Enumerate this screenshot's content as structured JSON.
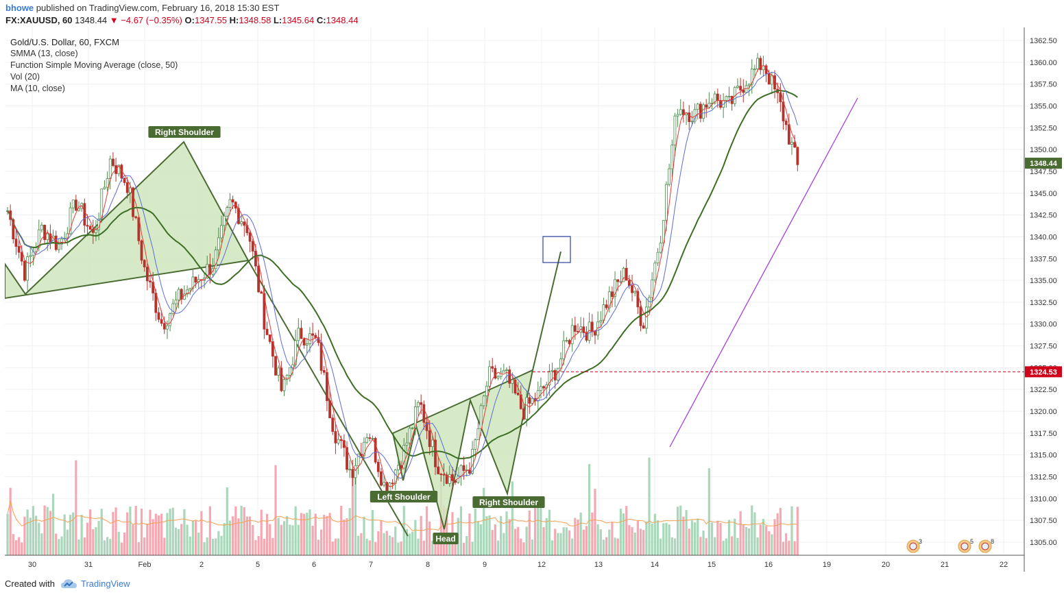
{
  "header": {
    "author": "bhowe",
    "published": "published on TradingView.com, February 16, 2018 15:30 EST",
    "symbol": "FX:XAUUSD, 60",
    "last": "1348.44",
    "change": "▼ −4.67 (−0.35%)",
    "o_label": "O:",
    "o": "1347.55",
    "h_label": "H:",
    "h": "1348.58",
    "l_label": "L:",
    "l": "1345.64",
    "c_label": "C:",
    "c": "1348.44"
  },
  "legend": {
    "title": "Gold/U.S. Dollar, 60, FXCM",
    "items": [
      "SMMA (13, close)",
      "Function Simple Moving Average (close, 50)",
      "Vol (20)",
      "MA (10, close)"
    ]
  },
  "footer": {
    "created": "Created with",
    "brand": "TradingView"
  },
  "colors": {
    "up": "#4a8a4a",
    "down": "#b5332d",
    "pattern": "#4a6b32",
    "pattern_fill": "#cfe6bd",
    "ma_red": "#e53935",
    "ma_blue": "#5c6bd6",
    "ma_green": "#3b6e22",
    "trendline": "#a63fe0",
    "vol_up": "#a8d8b9",
    "vol_down": "#f4a8b2",
    "vol_ma": "#f5a050",
    "level": "#d0021b"
  },
  "chart_data": {
    "type": "candlestick",
    "ylim": [
      1303.5,
      1364
    ],
    "y_ticks": [
      "1305.00",
      "1307.50",
      "1310.00",
      "1312.50",
      "1315.00",
      "1317.50",
      "1320.00",
      "1322.50",
      "1325.00",
      "1327.50",
      "1330.00",
      "1332.50",
      "1335.00",
      "1337.50",
      "1340.00",
      "1342.50",
      "1345.00",
      "1347.50",
      "1350.00",
      "1352.50",
      "1355.00",
      "1357.50",
      "1360.00",
      "1362.50"
    ],
    "x_ticks": [
      "30",
      "31",
      "Feb",
      "2",
      "5",
      "6",
      "7",
      "8",
      "9",
      "12",
      "13",
      "14",
      "15",
      "16",
      "19",
      "20",
      "21",
      "22"
    ],
    "last_price_label": "1348.44",
    "level_label": "1324.53",
    "level_value": 1324.53,
    "pattern_labels": [
      "Right Shoulder",
      "Left Shoulder",
      "Head",
      "Right Shoulder"
    ],
    "event_badges": [
      "3",
      "5",
      "8"
    ],
    "approx_close_path": [
      1343,
      1336,
      1341,
      1339,
      1344,
      1340,
      1349,
      1346,
      1336,
      1330,
      1333,
      1335,
      1337,
      1344,
      1341,
      1330,
      1322,
      1329,
      1328,
      1318,
      1313,
      1318,
      1311,
      1315,
      1321,
      1314,
      1312,
      1314,
      1324,
      1324,
      1320,
      1322,
      1325,
      1330,
      1329,
      1333,
      1336,
      1330,
      1340,
      1355,
      1354,
      1356,
      1355,
      1358,
      1360,
      1355,
      1348
    ]
  }
}
